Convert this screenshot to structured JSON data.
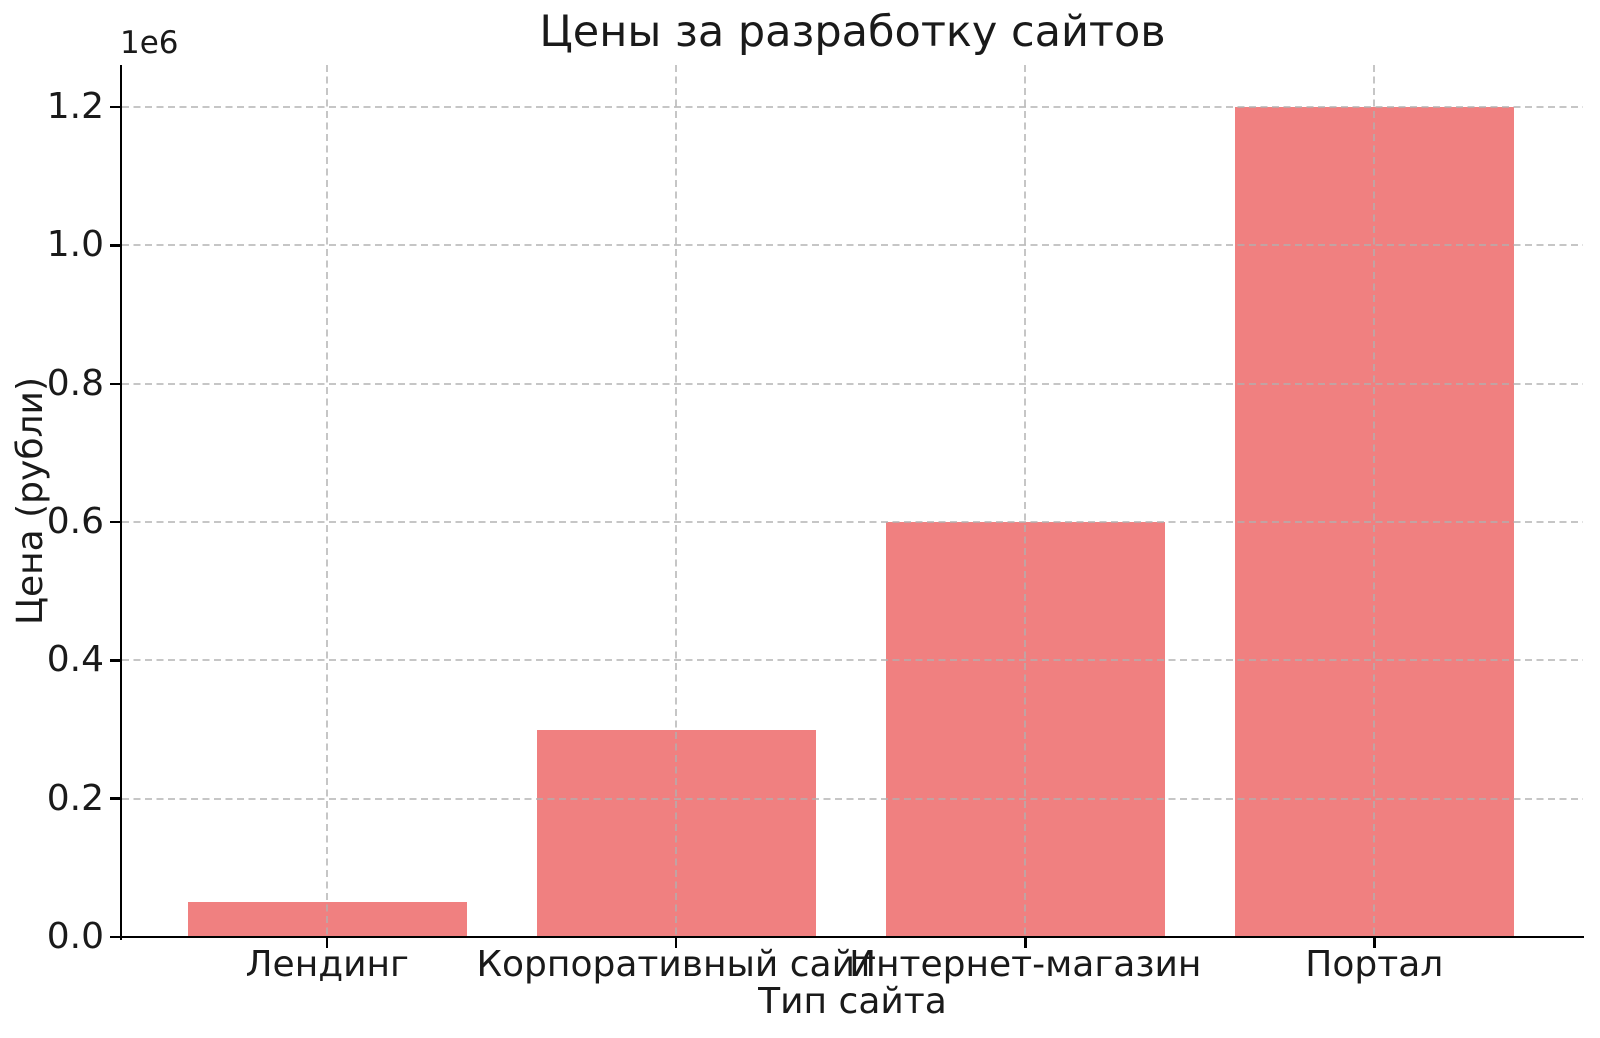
{
  "chart_data": {
    "type": "bar",
    "title": "Цены за разработку сайтов",
    "xlabel": "Тип сайта",
    "ylabel": "Цена (рубли)",
    "categories": [
      "Лендинг",
      "Корпоративный сайт",
      "Интернет-магазин",
      "Портал"
    ],
    "values": [
      50000,
      300000,
      600000,
      1200000
    ],
    "bar_color": "#f08080",
    "bar_width": 0.8,
    "xlim": [
      -0.588,
      3.598
    ],
    "ylim": [
      0,
      1261000
    ],
    "yticks": [
      0,
      200000,
      400000,
      600000,
      800000,
      1000000,
      1200000
    ],
    "ytick_labels": [
      "0.0",
      "0.2",
      "0.4",
      "0.6",
      "0.8",
      "1.0",
      "1.2"
    ],
    "y_offset_text": "1e6",
    "grid": {
      "axis": "both",
      "linestyle": "dashed",
      "color": "#b0b0b0",
      "alpha": 0.7
    },
    "legend": "none",
    "colors": {
      "text": "#1a1a1a",
      "spine": "#000000"
    }
  }
}
